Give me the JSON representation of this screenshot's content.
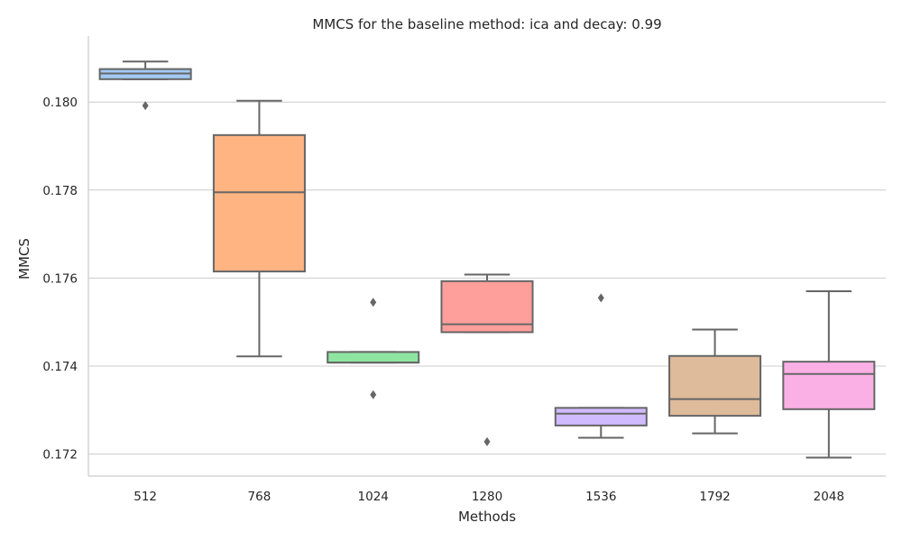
{
  "chart_data": {
    "type": "box",
    "title": "MMCS for the baseline method: ica and decay: 0.99",
    "xlabel": "Methods",
    "ylabel": "MMCS",
    "ylim": [
      0.1715,
      0.1815
    ],
    "yticks": [
      0.172,
      0.174,
      0.176,
      0.178,
      0.18
    ],
    "ytick_labels": [
      "0.172",
      "0.174",
      "0.176",
      "0.178",
      "0.180"
    ],
    "grid": "horizontal",
    "categories": [
      "512",
      "768",
      "1024",
      "1280",
      "1536",
      "1792",
      "2048"
    ],
    "boxes": [
      {
        "category": "512",
        "whisker_low": 0.18052,
        "q1": 0.18052,
        "median": 0.18065,
        "q3": 0.18075,
        "whisker_high": 0.18092,
        "outliers": [
          0.17992
        ],
        "color": "#a1c9f4"
      },
      {
        "category": "768",
        "whisker_low": 0.17422,
        "q1": 0.17615,
        "median": 0.17795,
        "q3": 0.17925,
        "whisker_high": 0.18003,
        "outliers": [],
        "color": "#ffb482"
      },
      {
        "category": "1024",
        "whisker_low": 0.17408,
        "q1": 0.17408,
        "median": 0.17408,
        "q3": 0.17432,
        "whisker_high": 0.17432,
        "outliers": [
          0.17545,
          0.17335
        ],
        "color": "#8de5a1"
      },
      {
        "category": "1280",
        "whisker_low": 0.17477,
        "q1": 0.17477,
        "median": 0.17495,
        "q3": 0.17593,
        "whisker_high": 0.17608,
        "outliers": [
          0.17228
        ],
        "color": "#ff9f9b"
      },
      {
        "category": "1536",
        "whisker_low": 0.17237,
        "q1": 0.17265,
        "median": 0.17292,
        "q3": 0.17305,
        "whisker_high": 0.17305,
        "outliers": [
          0.17555
        ],
        "color": "#d0bbff"
      },
      {
        "category": "1792",
        "whisker_low": 0.17247,
        "q1": 0.17287,
        "median": 0.17325,
        "q3": 0.17423,
        "whisker_high": 0.17483,
        "outliers": [],
        "color": "#debb9b"
      },
      {
        "category": "2048",
        "whisker_low": 0.17192,
        "q1": 0.17302,
        "median": 0.17382,
        "q3": 0.1741,
        "whisker_high": 0.1757,
        "outliers": [],
        "color": "#fab0e4"
      }
    ]
  }
}
